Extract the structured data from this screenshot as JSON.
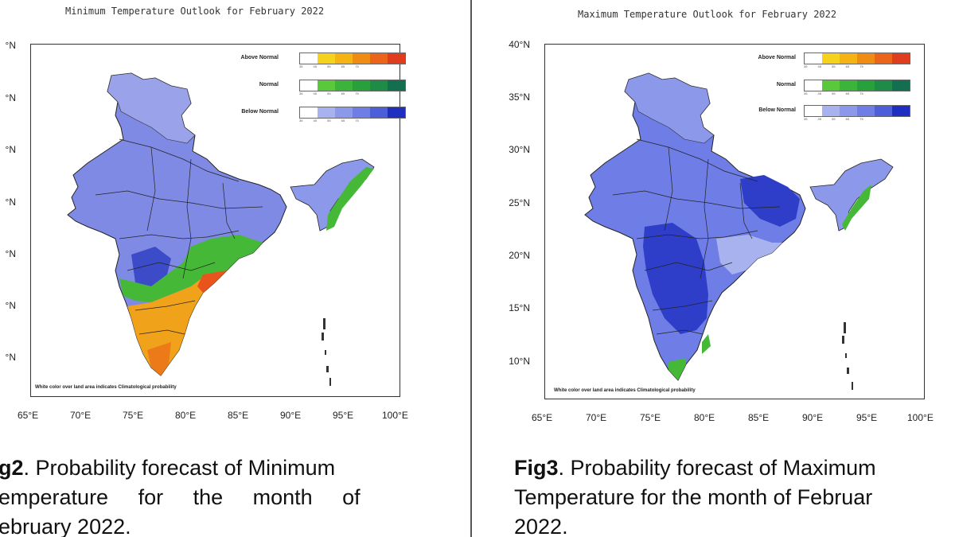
{
  "left": {
    "title": "Minimum Temperature Outlook for February 2022",
    "lat_labels": [
      "°N",
      "°N",
      "°N",
      "°N",
      "°N",
      "°N",
      "°N"
    ],
    "lon_labels": [
      "65°E",
      "70°E",
      "75°E",
      "80°E",
      "85°E",
      "90°E",
      "95°E",
      "100°E"
    ],
    "legend": {
      "above_normal": "Above Normal",
      "normal": "Normal",
      "below_normal": "Below Normal",
      "ticks": "35 45 55 65 75"
    },
    "note": "White color over land area indicates Climatological probability",
    "caption": {
      "fig": "g2",
      "text": ". Probability forecast of Minimum",
      "line2": "emperature for the month of",
      "line3": "ebruary 2022."
    }
  },
  "right": {
    "title": "Maximum Temperature Outlook for February 2022",
    "lat_labels": [
      "40°N",
      "35°N",
      "30°N",
      "25°N",
      "20°N",
      "15°N",
      "10°N"
    ],
    "lon_labels": [
      "65°E",
      "70°E",
      "75°E",
      "80°E",
      "85°E",
      "90°E",
      "95°E",
      "100°E"
    ],
    "legend": {
      "above_normal": "Above Normal",
      "normal": "Normal",
      "below_normal": "Below Normal",
      "ticks": "35 45 55 65 75"
    },
    "note": "White color over land area indicates Climatological probability",
    "caption": {
      "fig": "Fig3",
      "text": ". Probability forecast of Maximum",
      "line2": "Temperature for the month of Februar",
      "line3": "2022."
    }
  },
  "colors": {
    "above_scale": [
      "#ffffff",
      "#f6d21c",
      "#f5b414",
      "#f08c14",
      "#ec641a",
      "#e03c1e"
    ],
    "normal_scale": [
      "#ffffff",
      "#5ac83a",
      "#3cb43c",
      "#28a03c",
      "#1e8c46",
      "#146e50"
    ],
    "below_scale": [
      "#ffffff",
      "#a8b2ee",
      "#8c98ea",
      "#6e7ee6",
      "#4c5ed8",
      "#1e2ec0"
    ]
  }
}
